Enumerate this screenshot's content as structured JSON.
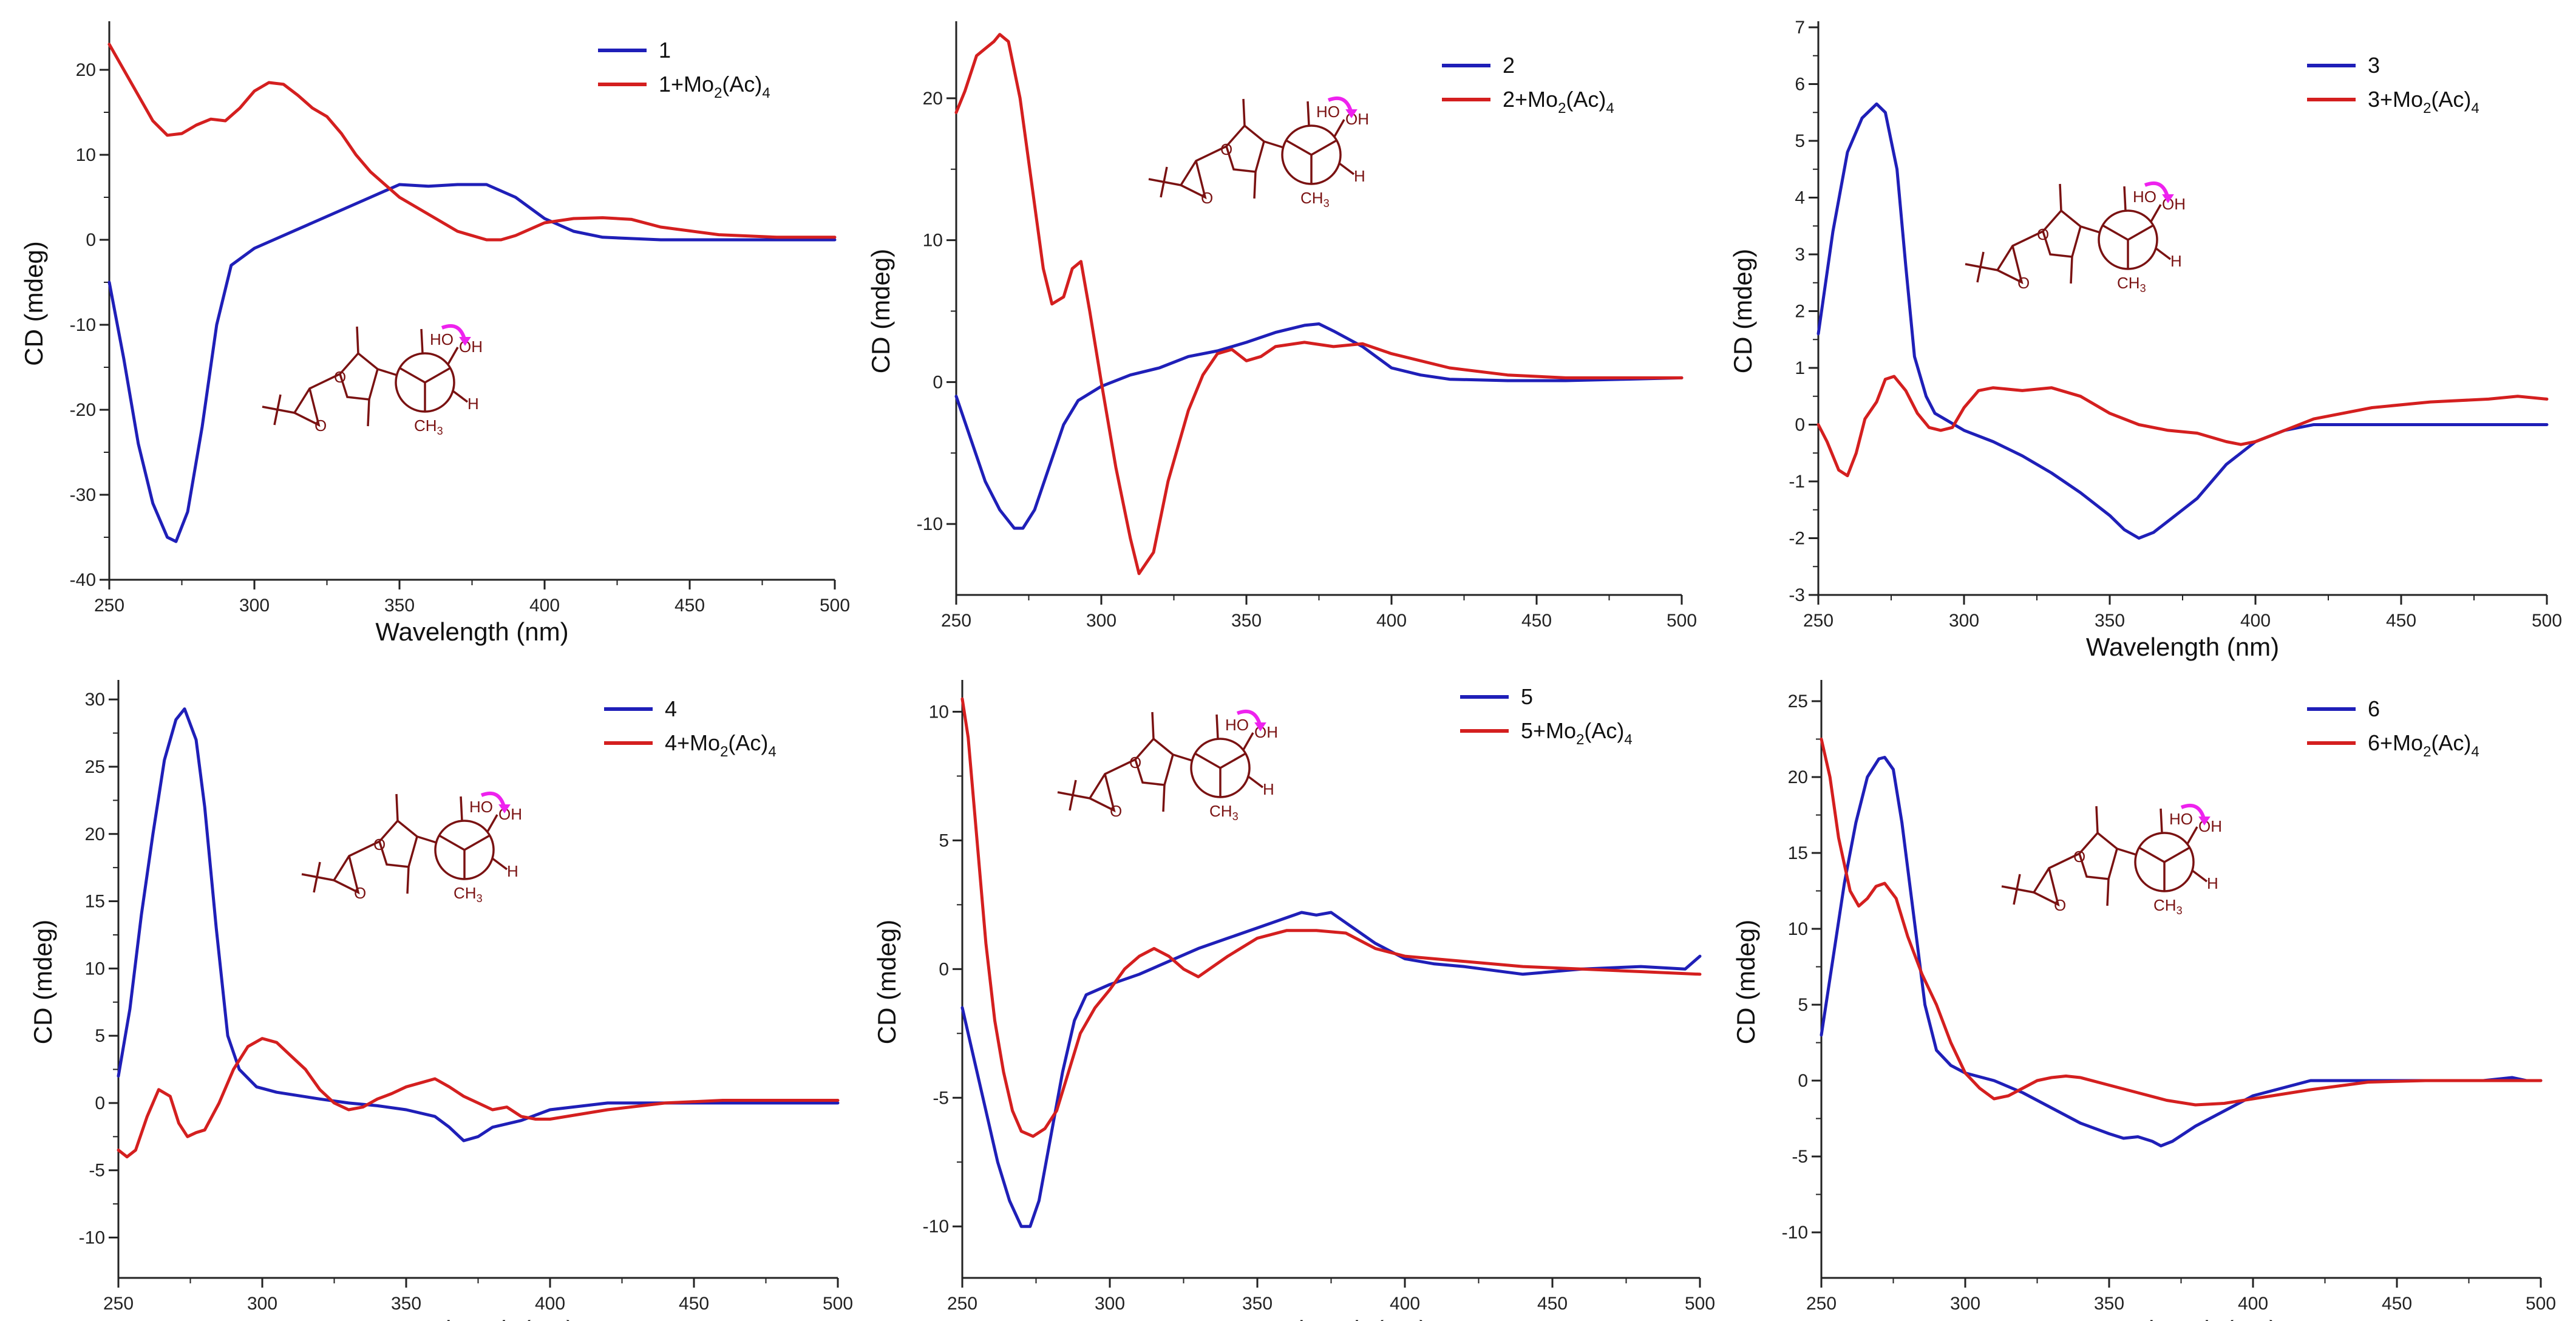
{
  "colors": {
    "blue": "#1f1fb8",
    "red": "#d41f1f",
    "molecule": "#7a1212",
    "arrow": "#ee22ee"
  },
  "chart_data": [
    {
      "type": "line",
      "panel": "1",
      "xlabel": "Wavelength (nm)",
      "ylabel": "CD (mdeg)",
      "xlim": [
        250,
        500
      ],
      "ylim": [
        -40,
        25
      ],
      "xticks": [
        250,
        300,
        350,
        400,
        450,
        500
      ],
      "yticks": [
        -40,
        -30,
        -20,
        -10,
        0,
        10,
        20
      ],
      "legend": {
        "main1": "1",
        "main2": "1+Mo",
        "sub1": "2",
        "mid": "(Ac)",
        "sub2": "4"
      },
      "series": [
        {
          "name": "1",
          "color": "blue",
          "x": [
            250,
            255,
            260,
            265,
            270,
            273,
            277,
            282,
            287,
            292,
            300,
            310,
            320,
            330,
            340,
            350,
            360,
            370,
            380,
            390,
            400,
            410,
            420,
            440,
            460,
            480,
            500
          ],
          "y": [
            -5,
            -14,
            -24,
            -31,
            -35,
            -35.5,
            -32,
            -22,
            -10,
            -3,
            -1,
            0.5,
            2,
            3.5,
            5,
            6.5,
            6.3,
            6.5,
            6.5,
            5,
            2.5,
            1,
            0.3,
            0,
            0,
            0,
            0
          ]
        },
        {
          "name": "1+Mo2(Ac)4",
          "color": "red",
          "x": [
            250,
            255,
            260,
            265,
            270,
            275,
            280,
            285,
            290,
            295,
            300,
            305,
            310,
            315,
            320,
            325,
            330,
            335,
            340,
            350,
            360,
            370,
            380,
            385,
            390,
            400,
            410,
            420,
            430,
            440,
            460,
            480,
            500
          ],
          "y": [
            23,
            20,
            17,
            14,
            12.3,
            12.5,
            13.5,
            14.2,
            14,
            15.5,
            17.5,
            18.5,
            18.3,
            17,
            15.5,
            14.5,
            12.5,
            10,
            8,
            5,
            3,
            1,
            0,
            0,
            0.5,
            2,
            2.5,
            2.6,
            2.4,
            1.5,
            0.6,
            0.3,
            0.3
          ]
        }
      ]
    },
    {
      "type": "line",
      "panel": "2",
      "xlabel": "",
      "ylabel": "CD (mdeg)",
      "xlim": [
        250,
        500
      ],
      "ylim": [
        -15,
        25
      ],
      "xticks": [
        250,
        300,
        350,
        400,
        450,
        500
      ],
      "yticks": [
        -10,
        0,
        10,
        20
      ],
      "legend": {
        "main1": "2",
        "main2": "2+Mo",
        "sub1": "2",
        "mid": "(Ac)",
        "sub2": "4"
      },
      "series": [
        {
          "name": "2",
          "color": "blue",
          "x": [
            250,
            255,
            260,
            265,
            270,
            273,
            277,
            282,
            287,
            292,
            300,
            310,
            320,
            330,
            340,
            350,
            360,
            370,
            375,
            380,
            390,
            400,
            410,
            420,
            440,
            460,
            480,
            500
          ],
          "y": [
            -1,
            -4,
            -7,
            -9,
            -10.3,
            -10.3,
            -9,
            -6,
            -3,
            -1.3,
            -0.3,
            0.5,
            1,
            1.8,
            2.2,
            2.8,
            3.5,
            4,
            4.1,
            3.6,
            2.5,
            1,
            0.5,
            0.2,
            0.1,
            0.1,
            0.2,
            0.3
          ]
        },
        {
          "name": "2+Mo2(Ac)4",
          "color": "red",
          "x": [
            250,
            253,
            257,
            260,
            263,
            265,
            268,
            272,
            276,
            280,
            283,
            287,
            290,
            293,
            296,
            300,
            305,
            310,
            313,
            318,
            323,
            330,
            335,
            340,
            345,
            350,
            355,
            360,
            370,
            380,
            390,
            400,
            420,
            440,
            460,
            480,
            500
          ],
          "y": [
            19,
            20.5,
            23,
            23.5,
            24,
            24.5,
            24,
            20,
            14,
            8,
            5.5,
            6,
            8,
            8.5,
            5,
            0,
            -6,
            -11,
            -13.5,
            -12,
            -7,
            -2,
            0.5,
            2,
            2.3,
            1.5,
            1.8,
            2.5,
            2.8,
            2.5,
            2.7,
            2,
            1,
            0.5,
            0.3,
            0.3,
            0.3
          ]
        }
      ]
    },
    {
      "type": "line",
      "panel": "3",
      "xlabel": "Wavelength (nm)",
      "ylabel": "CD (mdeg)",
      "xlim": [
        250,
        500
      ],
      "ylim": [
        -3,
        7
      ],
      "xticks": [
        250,
        300,
        350,
        400,
        450,
        500
      ],
      "yticks": [
        -3,
        -2,
        -1,
        0,
        1,
        2,
        3,
        4,
        5,
        6,
        7
      ],
      "legend": {
        "main1": "3",
        "main2": "3+Mo",
        "sub1": "2",
        "mid": "(Ac)",
        "sub2": "4"
      },
      "series": [
        {
          "name": "3",
          "color": "blue",
          "x": [
            250,
            255,
            260,
            265,
            270,
            273,
            277,
            280,
            283,
            287,
            290,
            295,
            300,
            310,
            320,
            330,
            340,
            350,
            355,
            360,
            365,
            370,
            375,
            380,
            390,
            400,
            410,
            420,
            440,
            460,
            480,
            500
          ],
          "y": [
            1.6,
            3.4,
            4.8,
            5.4,
            5.65,
            5.5,
            4.5,
            2.8,
            1.2,
            0.5,
            0.2,
            0.05,
            -0.1,
            -0.3,
            -0.55,
            -0.85,
            -1.2,
            -1.6,
            -1.85,
            -2.0,
            -1.9,
            -1.7,
            -1.5,
            -1.3,
            -0.7,
            -0.3,
            -0.1,
            0,
            0,
            0,
            0,
            0
          ]
        },
        {
          "name": "3+Mo2(Ac)4",
          "color": "red",
          "x": [
            250,
            253,
            257,
            260,
            263,
            266,
            270,
            273,
            276,
            280,
            284,
            288,
            292,
            296,
            300,
            305,
            310,
            320,
            330,
            340,
            350,
            360,
            370,
            380,
            390,
            395,
            400,
            410,
            420,
            440,
            460,
            480,
            490,
            500
          ],
          "y": [
            0,
            -0.3,
            -0.8,
            -0.9,
            -0.5,
            0.1,
            0.4,
            0.8,
            0.85,
            0.6,
            0.2,
            -0.05,
            -0.1,
            -0.05,
            0.3,
            0.6,
            0.65,
            0.6,
            0.65,
            0.5,
            0.2,
            0,
            -0.1,
            -0.15,
            -0.3,
            -0.35,
            -0.3,
            -0.1,
            0.1,
            0.3,
            0.4,
            0.45,
            0.5,
            0.45
          ]
        }
      ]
    },
    {
      "type": "line",
      "panel": "4",
      "xlabel": "Wavelength (nm)",
      "ylabel": "CD (mdeg)",
      "xlim": [
        250,
        500
      ],
      "ylim": [
        -13,
        31
      ],
      "xticks": [
        250,
        300,
        350,
        400,
        450,
        500
      ],
      "yticks": [
        -10,
        -5,
        0,
        5,
        10,
        15,
        20,
        25,
        30
      ],
      "legend": {
        "main1": "4",
        "main2": "4+Mo",
        "sub1": "2",
        "mid": "(Ac)",
        "sub2": "4"
      },
      "series": [
        {
          "name": "4",
          "color": "blue",
          "x": [
            250,
            254,
            258,
            262,
            266,
            270,
            273,
            277,
            280,
            284,
            288,
            292,
            298,
            305,
            320,
            330,
            340,
            350,
            360,
            365,
            370,
            375,
            380,
            390,
            400,
            420,
            440,
            460,
            480,
            500
          ],
          "y": [
            2,
            7,
            14,
            20,
            25.5,
            28.5,
            29.3,
            27,
            22,
            13,
            5,
            2.5,
            1.2,
            0.8,
            0.3,
            0,
            -0.2,
            -0.5,
            -1,
            -1.8,
            -2.8,
            -2.5,
            -1.8,
            -1.3,
            -0.5,
            0,
            0,
            0,
            0,
            0
          ]
        },
        {
          "name": "4+Mo2(Ac)4",
          "color": "red",
          "x": [
            250,
            253,
            256,
            260,
            264,
            268,
            271,
            274,
            277,
            280,
            285,
            290,
            295,
            300,
            305,
            310,
            315,
            320,
            325,
            330,
            335,
            340,
            345,
            350,
            355,
            360,
            365,
            370,
            375,
            380,
            385,
            390,
            395,
            400,
            420,
            440,
            460,
            480,
            500
          ],
          "y": [
            -3.5,
            -4,
            -3.5,
            -1,
            1,
            0.5,
            -1.5,
            -2.5,
            -2.2,
            -2,
            0,
            2.5,
            4.2,
            4.8,
            4.5,
            3.5,
            2.5,
            1,
            0,
            -0.5,
            -0.3,
            0.3,
            0.7,
            1.2,
            1.5,
            1.8,
            1.2,
            0.5,
            0,
            -0.5,
            -0.3,
            -1,
            -1.2,
            -1.2,
            -0.5,
            0,
            0.2,
            0.2,
            0.2
          ]
        }
      ]
    },
    {
      "type": "line",
      "panel": "5",
      "xlabel": "Wavelength (nm)",
      "ylabel": "CD (mdeg)",
      "xlim": [
        250,
        500
      ],
      "ylim": [
        -12,
        11
      ],
      "xticks": [
        250,
        300,
        350,
        400,
        450,
        500
      ],
      "yticks": [
        -10,
        -5,
        0,
        5,
        10
      ],
      "legend": {
        "main1": "5",
        "main2": "5+Mo",
        "sub1": "2",
        "mid": "(Ac)",
        "sub2": "4"
      },
      "series": [
        {
          "name": "5",
          "color": "blue",
          "x": [
            250,
            254,
            258,
            262,
            266,
            270,
            273,
            276,
            280,
            284,
            288,
            292,
            296,
            300,
            310,
            320,
            330,
            340,
            350,
            360,
            365,
            370,
            375,
            380,
            390,
            400,
            410,
            420,
            440,
            460,
            480,
            495,
            500
          ],
          "y": [
            -1.5,
            -3.5,
            -5.5,
            -7.5,
            -9,
            -10,
            -10,
            -9,
            -6.5,
            -4,
            -2,
            -1,
            -0.8,
            -0.6,
            -0.2,
            0.3,
            0.8,
            1.2,
            1.6,
            2,
            2.2,
            2.1,
            2.2,
            1.8,
            1,
            0.4,
            0.2,
            0.1,
            -0.2,
            0,
            0.1,
            0,
            0.5
          ]
        },
        {
          "name": "5+Mo2(Ac)4",
          "color": "red",
          "x": [
            250,
            252,
            255,
            258,
            261,
            264,
            267,
            270,
            274,
            278,
            282,
            286,
            290,
            295,
            300,
            305,
            310,
            315,
            320,
            325,
            330,
            340,
            350,
            360,
            370,
            380,
            390,
            400,
            420,
            440,
            460,
            480,
            500
          ],
          "y": [
            10.5,
            9,
            5,
            1,
            -2,
            -4,
            -5.5,
            -6.3,
            -6.5,
            -6.2,
            -5.5,
            -4,
            -2.5,
            -1.5,
            -0.8,
            0,
            0.5,
            0.8,
            0.5,
            0,
            -0.3,
            0.5,
            1.2,
            1.5,
            1.5,
            1.4,
            0.8,
            0.5,
            0.3,
            0.1,
            0,
            -0.1,
            -0.2
          ]
        }
      ]
    },
    {
      "type": "line",
      "panel": "6",
      "xlabel": "Wavelength (nm)",
      "ylabel": "CD (mdeg)",
      "xlim": [
        250,
        500
      ],
      "ylim": [
        -13,
        26
      ],
      "xticks": [
        250,
        300,
        350,
        400,
        450,
        500
      ],
      "yticks": [
        -10,
        -5,
        0,
        5,
        10,
        15,
        20,
        25
      ],
      "legend": {
        "main1": "6",
        "main2": "6+Mo",
        "sub1": "2",
        "mid": "(Ac)",
        "sub2": "4"
      },
      "series": [
        {
          "name": "6",
          "color": "blue",
          "x": [
            250,
            254,
            258,
            262,
            266,
            270,
            272,
            275,
            278,
            282,
            286,
            290,
            295,
            300,
            310,
            320,
            330,
            340,
            350,
            355,
            360,
            365,
            368,
            372,
            380,
            390,
            400,
            420,
            440,
            460,
            480,
            490,
            495,
            500
          ],
          "y": [
            3,
            8,
            13,
            17,
            20,
            21.2,
            21.3,
            20.5,
            17,
            11,
            5,
            2,
            1,
            0.5,
            0,
            -0.8,
            -1.8,
            -2.8,
            -3.5,
            -3.8,
            -3.7,
            -4,
            -4.3,
            -4,
            -3,
            -2,
            -1,
            0,
            0,
            0,
            0,
            0.2,
            0,
            0
          ]
        },
        {
          "name": "6+Mo2(Ac)4",
          "color": "red",
          "x": [
            250,
            253,
            256,
            260,
            263,
            266,
            269,
            272,
            276,
            280,
            285,
            290,
            295,
            300,
            305,
            310,
            315,
            320,
            325,
            330,
            335,
            340,
            350,
            360,
            370,
            380,
            390,
            400,
            420,
            440,
            460,
            480,
            500
          ],
          "y": [
            22.5,
            20,
            16,
            12.5,
            11.5,
            12,
            12.8,
            13,
            12,
            9.5,
            7,
            5,
            2.5,
            0.5,
            -0.5,
            -1.2,
            -1,
            -0.5,
            0,
            0.2,
            0.3,
            0.2,
            -0.3,
            -0.8,
            -1.3,
            -1.6,
            -1.5,
            -1.2,
            -0.6,
            -0.1,
            0,
            0,
            0
          ]
        }
      ]
    }
  ]
}
